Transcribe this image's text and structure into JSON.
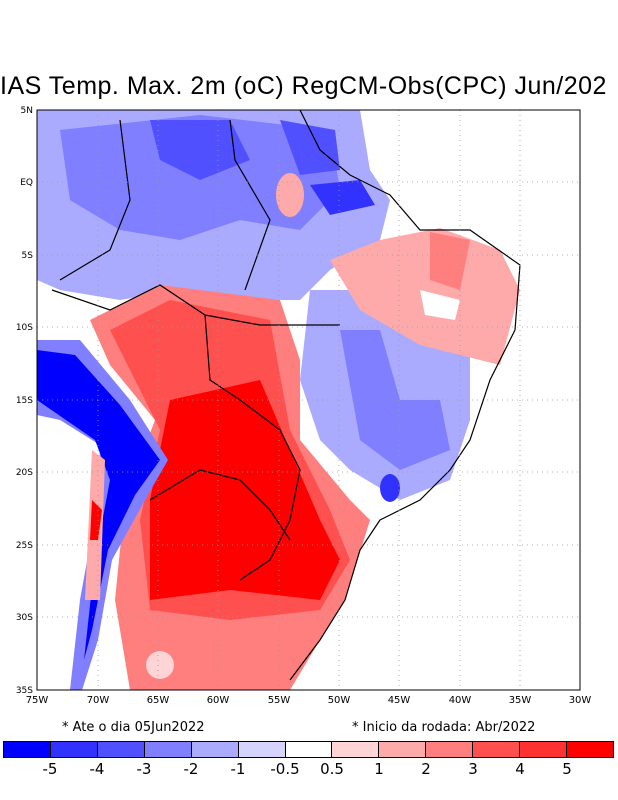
{
  "title": "IAS Temp. Max. 2m (oC) RegCM-Obs(CPC) Jun/202",
  "lat_labels": [
    "5N",
    "EQ",
    "5S",
    "10S",
    "15S",
    "20S",
    "25S",
    "30S",
    "35S"
  ],
  "lon_labels": [
    "75W",
    "70W",
    "65W",
    "60W",
    "55W",
    "50W",
    "45W",
    "40W",
    "35W",
    "30W"
  ],
  "note_left": "* Ate o dia 05Jun2022",
  "note_right": "* Inicio da rodada: Abr/2022",
  "colorbar": {
    "colors": [
      "#0000ff",
      "#3232ff",
      "#5050ff",
      "#7f7fff",
      "#aaaaff",
      "#d4d4ff",
      "#ffffff",
      "#ffd4d4",
      "#ffaaaa",
      "#ff7f7f",
      "#ff5050",
      "#ff3232",
      "#ff0000"
    ],
    "labels": [
      "-5",
      "-4",
      "-3",
      "-2",
      "-1",
      "-0.5",
      "0.5",
      "1",
      "2",
      "3",
      "4",
      "5"
    ]
  }
}
